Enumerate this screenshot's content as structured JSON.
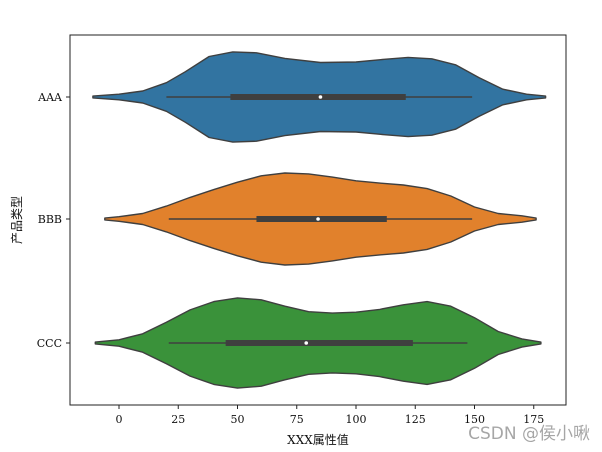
{
  "chart_data": {
    "type": "violin",
    "orientation": "horizontal",
    "xlabel": "XXX属性值",
    "ylabel": "产品类型",
    "xlim": [
      -20,
      190
    ],
    "xticks": [
      0,
      25,
      50,
      75,
      100,
      125,
      150,
      175
    ],
    "categories": [
      "AAA",
      "BBB",
      "CCC"
    ],
    "series": [
      {
        "name": "AAA",
        "color": "#3274a1",
        "whisker": [
          20,
          149
        ],
        "quartiles": [
          47,
          121
        ],
        "median": 85,
        "kde_extent": [
          -11,
          180
        ],
        "density": [
          [
            -11,
            0.02
          ],
          [
            0,
            0.06
          ],
          [
            10,
            0.13
          ],
          [
            20,
            0.31
          ],
          [
            28,
            0.55
          ],
          [
            38,
            0.88
          ],
          [
            48,
            0.98
          ],
          [
            58,
            0.96
          ],
          [
            70,
            0.84
          ],
          [
            85,
            0.75
          ],
          [
            100,
            0.76
          ],
          [
            112,
            0.82
          ],
          [
            122,
            0.86
          ],
          [
            132,
            0.83
          ],
          [
            142,
            0.7
          ],
          [
            152,
            0.42
          ],
          [
            162,
            0.17
          ],
          [
            172,
            0.06
          ],
          [
            180,
            0.02
          ]
        ]
      },
      {
        "name": "BBB",
        "color": "#e1812c",
        "whisker": [
          21,
          149
        ],
        "quartiles": [
          58,
          113
        ],
        "median": 84,
        "kde_extent": [
          -6,
          176
        ],
        "density": [
          [
            -6,
            0.02
          ],
          [
            0,
            0.05
          ],
          [
            10,
            0.12
          ],
          [
            20,
            0.28
          ],
          [
            30,
            0.47
          ],
          [
            40,
            0.64
          ],
          [
            50,
            0.8
          ],
          [
            60,
            0.94
          ],
          [
            70,
            1.0
          ],
          [
            80,
            0.98
          ],
          [
            90,
            0.91
          ],
          [
            100,
            0.83
          ],
          [
            110,
            0.78
          ],
          [
            120,
            0.74
          ],
          [
            130,
            0.66
          ],
          [
            140,
            0.5
          ],
          [
            150,
            0.26
          ],
          [
            160,
            0.12
          ],
          [
            170,
            0.07
          ],
          [
            176,
            0.02
          ]
        ]
      },
      {
        "name": "CCC",
        "color": "#3a923a",
        "whisker": [
          21,
          147
        ],
        "quartiles": [
          45,
          124
        ],
        "median": 79,
        "kde_extent": [
          -10,
          178
        ],
        "density": [
          [
            -10,
            0.02
          ],
          [
            0,
            0.07
          ],
          [
            10,
            0.2
          ],
          [
            20,
            0.45
          ],
          [
            30,
            0.72
          ],
          [
            40,
            0.9
          ],
          [
            50,
            0.98
          ],
          [
            60,
            0.94
          ],
          [
            70,
            0.8
          ],
          [
            80,
            0.68
          ],
          [
            90,
            0.65
          ],
          [
            100,
            0.67
          ],
          [
            110,
            0.73
          ],
          [
            120,
            0.83
          ],
          [
            130,
            0.9
          ],
          [
            140,
            0.8
          ],
          [
            150,
            0.55
          ],
          [
            160,
            0.25
          ],
          [
            170,
            0.09
          ],
          [
            178,
            0.02
          ]
        ]
      }
    ]
  },
  "watermark": "CSDN @侯小啾"
}
